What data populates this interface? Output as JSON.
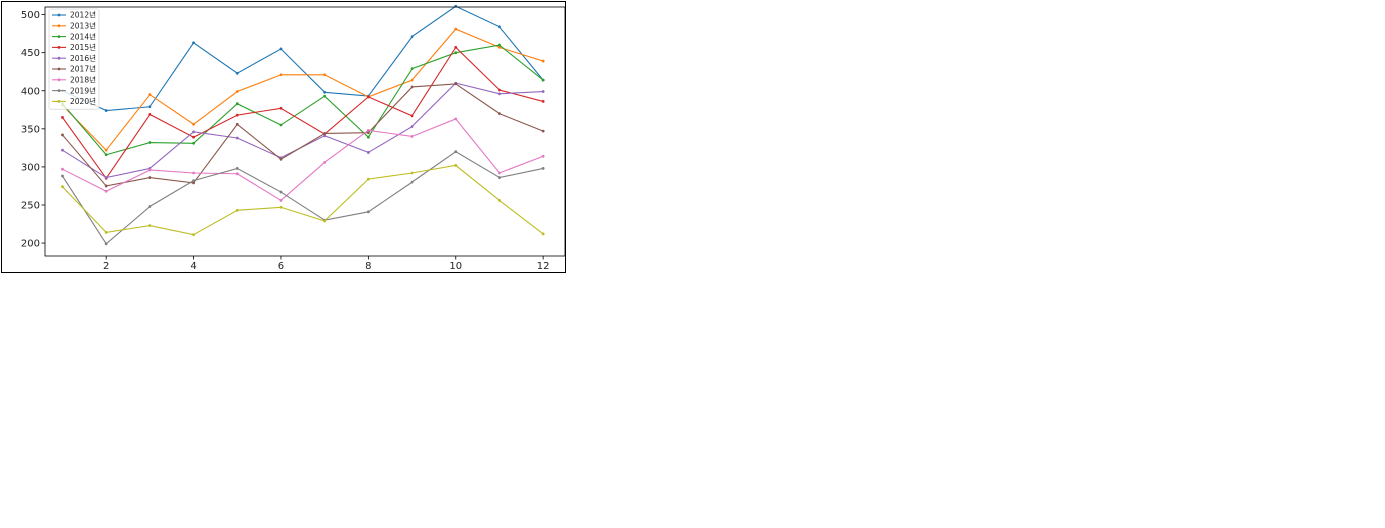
{
  "chart_data": {
    "type": "line",
    "title": "",
    "xlabel": "",
    "ylabel": "",
    "xlim": [
      0.6,
      12.5
    ],
    "ylim": [
      183,
      510
    ],
    "x": [
      1,
      2,
      3,
      4,
      5,
      6,
      7,
      8,
      9,
      10,
      11,
      12
    ],
    "xticks": [
      2,
      4,
      6,
      8,
      10,
      12
    ],
    "yticks": [
      200,
      250,
      300,
      350,
      400,
      450,
      500
    ],
    "grid": false,
    "legend_position": "top-left",
    "series": [
      {
        "name": "2012년",
        "color": "#1f77b4",
        "values": [
          400,
          374,
          379,
          463,
          423,
          455,
          398,
          393,
          471,
          511,
          484,
          414
        ]
      },
      {
        "name": "2013년",
        "color": "#ff7f0e",
        "values": [
          381,
          322,
          395,
          356,
          399,
          421,
          421,
          392,
          414,
          481,
          457,
          439
        ]
      },
      {
        "name": "2014년",
        "color": "#2ca02c",
        "values": [
          383,
          316,
          332,
          331,
          383,
          355,
          393,
          339,
          429,
          450,
          460,
          414
        ]
      },
      {
        "name": "2015년",
        "color": "#d62728",
        "values": [
          365,
          285,
          369,
          339,
          368,
          377,
          343,
          392,
          367,
          457,
          401,
          386
        ]
      },
      {
        "name": "2016년",
        "color": "#9467bd",
        "values": [
          322,
          286,
          298,
          346,
          338,
          312,
          341,
          319,
          353,
          410,
          396,
          399
        ]
      },
      {
        "name": "2017년",
        "color": "#8c564b",
        "values": [
          342,
          275,
          286,
          279,
          356,
          310,
          344,
          345,
          405,
          409,
          370,
          347
        ]
      },
      {
        "name": "2018년",
        "color": "#e377c2",
        "values": [
          297,
          268,
          296,
          292,
          291,
          256,
          306,
          348,
          340,
          363,
          292,
          314
        ]
      },
      {
        "name": "2019년",
        "color": "#7f7f7f",
        "values": [
          288,
          199,
          248,
          282,
          298,
          267,
          230,
          241,
          280,
          320,
          286,
          298
        ]
      },
      {
        "name": "2020년",
        "color": "#bcbd22",
        "values": [
          274,
          214,
          223,
          211,
          243,
          247,
          229,
          284,
          292,
          302,
          256,
          212
        ]
      }
    ]
  }
}
